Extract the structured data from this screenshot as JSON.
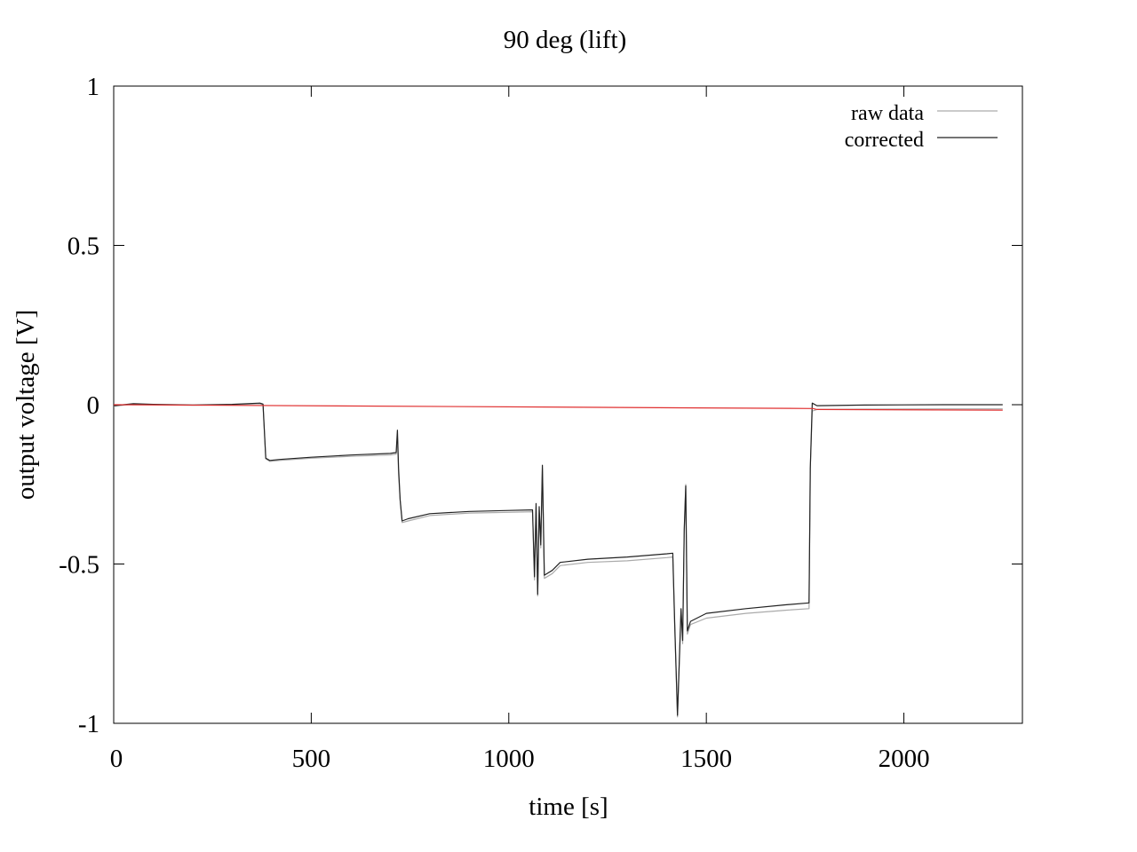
{
  "chart_data": {
    "type": "line",
    "title": "90 deg (lift)",
    "xlabel": "time [s]",
    "ylabel": "output voltage [V]",
    "xlim": [
      0,
      2300
    ],
    "ylim": [
      -1,
      1
    ],
    "xticks": [
      0,
      500,
      1000,
      1500,
      2000
    ],
    "xtick_labels": [
      "0",
      "500",
      "1000",
      "1500",
      "2000"
    ],
    "yticks": [
      1,
      0.5,
      0,
      -0.5,
      -1
    ],
    "ytick_labels": [
      "1",
      "0.5",
      "0",
      "-0.5",
      "-1"
    ],
    "grid": false,
    "legend_position": "top-right",
    "series": [
      {
        "name": "raw data",
        "color": "#aaaaaa",
        "points": [
          [
            0,
            -0.005
          ],
          [
            50,
            0.002
          ],
          [
            100,
            0.0
          ],
          [
            200,
            -0.002
          ],
          [
            300,
            0.0
          ],
          [
            370,
            0.003
          ],
          [
            378,
            0.0
          ],
          [
            385,
            -0.17
          ],
          [
            395,
            -0.178
          ],
          [
            420,
            -0.175
          ],
          [
            500,
            -0.168
          ],
          [
            600,
            -0.162
          ],
          [
            700,
            -0.158
          ],
          [
            715,
            -0.155
          ],
          [
            718,
            -0.1
          ],
          [
            721,
            -0.22
          ],
          [
            725,
            -0.3
          ],
          [
            730,
            -0.37
          ],
          [
            745,
            -0.365
          ],
          [
            800,
            -0.348
          ],
          [
            900,
            -0.34
          ],
          [
            1000,
            -0.338
          ],
          [
            1060,
            -0.336
          ],
          [
            1065,
            -0.55
          ],
          [
            1069,
            -0.32
          ],
          [
            1073,
            -0.6
          ],
          [
            1077,
            -0.33
          ],
          [
            1081,
            -0.45
          ],
          [
            1085,
            -0.2
          ],
          [
            1090,
            -0.545
          ],
          [
            1110,
            -0.53
          ],
          [
            1130,
            -0.505
          ],
          [
            1200,
            -0.495
          ],
          [
            1300,
            -0.49
          ],
          [
            1400,
            -0.48
          ],
          [
            1415,
            -0.478
          ],
          [
            1420,
            -0.7
          ],
          [
            1427,
            -0.98
          ],
          [
            1432,
            -0.8
          ],
          [
            1436,
            -0.65
          ],
          [
            1440,
            -0.75
          ],
          [
            1444,
            -0.4
          ],
          [
            1448,
            -0.25
          ],
          [
            1452,
            -0.72
          ],
          [
            1460,
            -0.69
          ],
          [
            1500,
            -0.67
          ],
          [
            1600,
            -0.655
          ],
          [
            1700,
            -0.645
          ],
          [
            1760,
            -0.64
          ],
          [
            1763,
            -0.2
          ],
          [
            1768,
            -0.02
          ],
          [
            1780,
            -0.015
          ],
          [
            1900,
            -0.014
          ],
          [
            2100,
            -0.013
          ],
          [
            2250,
            -0.013
          ]
        ]
      },
      {
        "name": "corrected",
        "color": "#222222",
        "points": [
          [
            0,
            -0.003
          ],
          [
            50,
            0.003
          ],
          [
            100,
            0.001
          ],
          [
            200,
            -0.001
          ],
          [
            300,
            0.001
          ],
          [
            370,
            0.005
          ],
          [
            378,
            0.002
          ],
          [
            385,
            -0.168
          ],
          [
            395,
            -0.175
          ],
          [
            420,
            -0.172
          ],
          [
            500,
            -0.165
          ],
          [
            600,
            -0.158
          ],
          [
            700,
            -0.153
          ],
          [
            715,
            -0.15
          ],
          [
            718,
            -0.08
          ],
          [
            721,
            -0.2
          ],
          [
            725,
            -0.3
          ],
          [
            730,
            -0.365
          ],
          [
            745,
            -0.358
          ],
          [
            800,
            -0.342
          ],
          [
            900,
            -0.335
          ],
          [
            1000,
            -0.332
          ],
          [
            1060,
            -0.33
          ],
          [
            1065,
            -0.54
          ],
          [
            1069,
            -0.31
          ],
          [
            1073,
            -0.595
          ],
          [
            1077,
            -0.32
          ],
          [
            1081,
            -0.44
          ],
          [
            1085,
            -0.19
          ],
          [
            1090,
            -0.535
          ],
          [
            1110,
            -0.52
          ],
          [
            1130,
            -0.495
          ],
          [
            1200,
            -0.485
          ],
          [
            1300,
            -0.478
          ],
          [
            1400,
            -0.468
          ],
          [
            1415,
            -0.466
          ],
          [
            1420,
            -0.69
          ],
          [
            1427,
            -0.975
          ],
          [
            1432,
            -0.79
          ],
          [
            1436,
            -0.64
          ],
          [
            1440,
            -0.74
          ],
          [
            1444,
            -0.39
          ],
          [
            1448,
            -0.255
          ],
          [
            1452,
            -0.71
          ],
          [
            1460,
            -0.68
          ],
          [
            1500,
            -0.655
          ],
          [
            1600,
            -0.64
          ],
          [
            1700,
            -0.628
          ],
          [
            1760,
            -0.622
          ],
          [
            1763,
            -0.2
          ],
          [
            1768,
            0.005
          ],
          [
            1780,
            -0.003
          ],
          [
            1900,
            -0.001
          ],
          [
            2100,
            0.0
          ],
          [
            2250,
            0.0
          ]
        ]
      },
      {
        "name": "",
        "color": "#e03030",
        "points": [
          [
            0,
            0.0
          ],
          [
            1770,
            -0.012
          ],
          [
            1780,
            -0.015
          ],
          [
            2250,
            -0.017
          ]
        ]
      }
    ]
  }
}
